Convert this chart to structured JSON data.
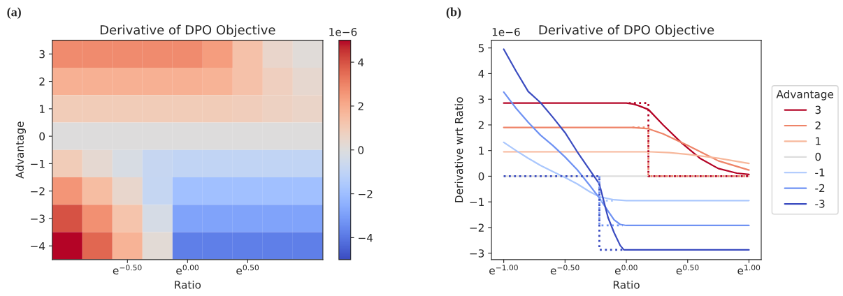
{
  "chart_data": [
    {
      "type": "heatmap",
      "title": "Derivative of DPO Objective",
      "xlabel": "Ratio",
      "ylabel": "Advantage",
      "annotations": [
        "(a)",
        "1e−6"
      ],
      "categories": [
        null,
        null,
        "e$^{−0.50}$",
        null,
        "e$^{0.00}$",
        null,
        "e$^{0.50}$",
        null,
        null
      ],
      "y_categories": [
        "3",
        "2",
        "1",
        "0",
        "−1",
        "−2",
        "−3",
        "−4"
      ],
      "cells": [
        [
          2.85,
          2.85,
          2.85,
          2.85,
          2.85,
          2.4,
          1.35,
          0.5,
          0.13
        ],
        [
          1.9,
          1.9,
          1.9,
          1.9,
          1.9,
          1.8,
          1.35,
          0.8,
          0.38
        ],
        [
          0.95,
          0.95,
          0.95,
          0.95,
          0.95,
          0.95,
          0.88,
          0.73,
          0.57
        ],
        [
          0,
          0,
          0,
          0,
          0,
          0,
          0,
          0,
          0
        ],
        [
          0.97,
          0.35,
          -0.2,
          -0.8,
          -0.95,
          -0.95,
          -0.95,
          -0.95,
          -0.95
        ],
        [
          2.6,
          1.5,
          0.45,
          -0.85,
          -1.92,
          -1.92,
          -1.92,
          -1.92,
          -1.92
        ],
        [
          4.0,
          2.7,
          1.25,
          -0.3,
          -2.87,
          -2.87,
          -2.87,
          -2.87,
          -2.87
        ],
        [
          5.0,
          3.6,
          1.8,
          0.2,
          -3.8,
          -3.8,
          -3.8,
          -3.8,
          -3.8
        ]
      ],
      "clim": [
        -5,
        5
      ],
      "cticks": [
        -4,
        -2,
        0,
        2,
        4
      ]
    },
    {
      "type": "line",
      "title": "Derivative of DPO Objective",
      "xlabel": "Ratio",
      "ylabel": "Derivative wrt Ratio",
      "annotations": [
        "(b)",
        "1e−6"
      ],
      "legend_title": "Advantage",
      "legend": "right",
      "grid": false,
      "xlim": [
        -1.1,
        1.1
      ],
      "xticks": [
        {
          "value": -1,
          "label": "e$^{−1.00}$"
        },
        {
          "value": -0.5,
          "label": "e$^{−0.50}$"
        },
        {
          "value": 0,
          "label": "e$^{0.00}$"
        },
        {
          "value": 0.5,
          "label": "e$^{0.50}$"
        },
        {
          "value": 1,
          "label": "e$^{1.00}$"
        }
      ],
      "ylim": [
        -3.25,
        5.3
      ],
      "yticks": [
        -3,
        -2,
        -1,
        0,
        1,
        2,
        3,
        4,
        5
      ],
      "series": [
        {
          "name": "3",
          "color": "#b40426",
          "line_style": "solid",
          "x": [
            -1,
            0,
            0.05,
            0.1,
            0.18,
            0.3,
            0.45,
            0.6,
            0.75,
            0.9,
            1
          ],
          "values": [
            2.85,
            2.85,
            2.82,
            2.75,
            2.6,
            2.0,
            1.3,
            0.7,
            0.3,
            0.12,
            0.07
          ]
        },
        {
          "name": "2",
          "color": "#ee8468",
          "line_style": "solid",
          "x": [
            -1,
            0.05,
            0.18,
            0.3,
            0.5,
            0.75,
            1
          ],
          "values": [
            1.9,
            1.9,
            1.85,
            1.65,
            1.2,
            0.6,
            0.24
          ]
        },
        {
          "name": "1",
          "color": "#f7b89c",
          "line_style": "solid",
          "x": [
            -1,
            0.2,
            0.35,
            0.5,
            0.75,
            1
          ],
          "values": [
            0.95,
            0.95,
            0.92,
            0.85,
            0.7,
            0.5
          ]
        },
        {
          "name": "0",
          "color": "#dddddd",
          "line_style": "solid",
          "x": [
            -1,
            1
          ],
          "values": [
            0,
            0
          ]
        },
        {
          "name": "-1",
          "color": "#aac7fd",
          "line_style": "solid",
          "x": [
            -1,
            -0.9,
            -0.8,
            -0.7,
            -0.6,
            -0.5,
            -0.4,
            -0.3,
            -0.22,
            -0.1,
            0,
            1
          ],
          "values": [
            1.32,
            1.0,
            0.7,
            0.42,
            0.18,
            -0.05,
            -0.3,
            -0.6,
            -0.8,
            -0.92,
            -0.95,
            -0.95
          ]
        },
        {
          "name": "-2",
          "color": "#6f92f3",
          "line_style": "solid",
          "x": [
            -1,
            -0.9,
            -0.8,
            -0.7,
            -0.6,
            -0.5,
            -0.4,
            -0.3,
            -0.22,
            -0.15,
            -0.1,
            -0.05,
            0,
            1
          ],
          "values": [
            3.28,
            2.65,
            2.1,
            1.6,
            1.2,
            0.75,
            0.25,
            -0.35,
            -0.85,
            -1.35,
            -1.7,
            -1.88,
            -1.92,
            -1.92
          ]
        },
        {
          "name": "-3",
          "color": "#3b4cc0",
          "line_style": "solid",
          "x": [
            -1,
            -0.9,
            -0.8,
            -0.7,
            -0.6,
            -0.5,
            -0.4,
            -0.3,
            -0.22,
            -0.15,
            -0.1,
            -0.05,
            -0.02,
            1
          ],
          "values": [
            4.95,
            4.1,
            3.3,
            2.87,
            2.3,
            1.7,
            0.95,
            0.25,
            -0.3,
            -1.6,
            -2.2,
            -2.7,
            -2.87,
            -2.87
          ]
        },
        {
          "color": "#b40426",
          "line_style": "dotted",
          "x": [
            0.02,
            0.18,
            0.18,
            1
          ],
          "values": [
            2.85,
            2.85,
            0,
            0
          ]
        },
        {
          "color": "#ee8468",
          "line_style": "dotted",
          "x": [
            0.05,
            0.18,
            0.18,
            1
          ],
          "values": [
            1.9,
            1.9,
            0,
            0
          ]
        },
        {
          "color": "#aac7fd",
          "line_style": "dotted",
          "x": [
            -0.22,
            -0.22,
            -0.1
          ],
          "values": [
            0,
            -0.95,
            -0.95
          ]
        },
        {
          "color": "#6f92f3",
          "line_style": "dotted",
          "x": [
            -0.22,
            -0.22,
            -0.03
          ],
          "values": [
            0,
            -1.92,
            -1.92
          ]
        },
        {
          "color": "#3b4cc0",
          "line_style": "dotted",
          "x": [
            -1,
            -0.22,
            -0.22,
            -0.02
          ],
          "values": [
            0,
            0,
            -2.87,
            -2.87
          ]
        }
      ]
    }
  ]
}
